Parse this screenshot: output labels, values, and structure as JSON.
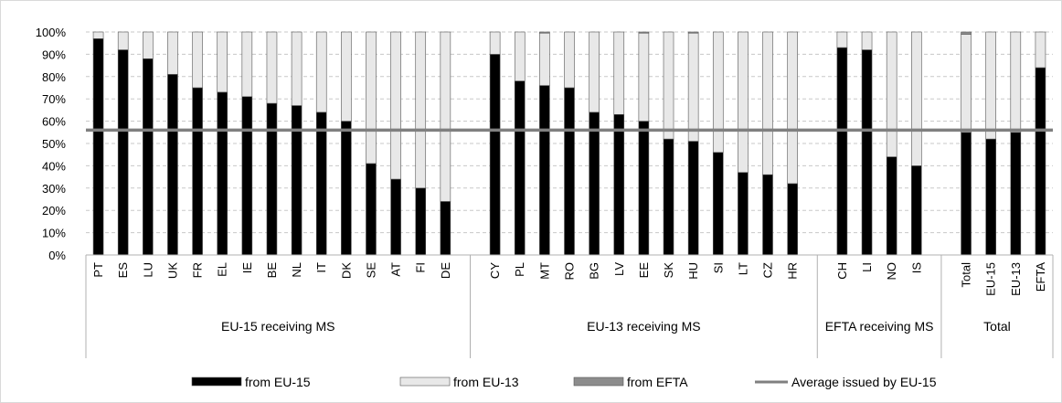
{
  "chart_data": {
    "type": "bar",
    "stacked": true,
    "orientation": "vertical",
    "ylim": [
      0,
      100
    ],
    "y_ticks": [
      "0%",
      "10%",
      "20%",
      "30%",
      "40%",
      "50%",
      "60%",
      "70%",
      "80%",
      "90%",
      "100%"
    ],
    "grid": "horizontal dashed",
    "legend_position": "bottom",
    "groups": [
      {
        "label": "EU-15 receiving MS",
        "categories": [
          "PT",
          "ES",
          "LU",
          "UK",
          "FR",
          "EL",
          "IE",
          "BE",
          "NL",
          "IT",
          "DK",
          "SE",
          "AT",
          "FI",
          "DE"
        ]
      },
      {
        "label": "EU-13 receiving MS",
        "categories": [
          "CY",
          "PL",
          "MT",
          "RO",
          "BG",
          "LV",
          "EE",
          "SK",
          "HU",
          "SI",
          "LT",
          "CZ",
          "HR"
        ]
      },
      {
        "label": "EFTA receiving MS",
        "categories": [
          "CH",
          "LI",
          "NO",
          "IS"
        ]
      },
      {
        "label": "Total",
        "categories": [
          "Total",
          "EU-15",
          "EU-13",
          "EFTA"
        ]
      }
    ],
    "series": [
      {
        "name": "from EU-15",
        "color": "#000000",
        "values": [
          97,
          92,
          88,
          81,
          75,
          73,
          71,
          68,
          67,
          64,
          60,
          41,
          34,
          30,
          24,
          90,
          78,
          76,
          75,
          64,
          63,
          60,
          52,
          51,
          46,
          37,
          36,
          32,
          93,
          92,
          44,
          40,
          55,
          52,
          55,
          84
        ]
      },
      {
        "name": "from EU-13",
        "color": "#e8e8e8",
        "values": [
          3,
          8,
          12,
          19,
          25,
          27,
          29,
          32,
          33,
          36,
          40,
          59,
          66,
          70,
          76,
          10,
          22,
          23.5,
          25,
          36,
          37,
          39.5,
          48,
          48.5,
          54,
          63,
          64,
          68,
          7,
          8,
          56,
          60,
          44,
          48,
          45,
          16
        ]
      },
      {
        "name": "from EFTA",
        "color": "#8c8c8c",
        "values": [
          0,
          0,
          0,
          0,
          0,
          0,
          0,
          0,
          0,
          0,
          0,
          0,
          0,
          0,
          0,
          0,
          0,
          0.5,
          0,
          0,
          0,
          0.5,
          0,
          0.5,
          0,
          0,
          0,
          0,
          0,
          0,
          0,
          0,
          1,
          0,
          0,
          0
        ]
      }
    ],
    "reference_line": {
      "name": "Average issued by EU-15",
      "value": 56,
      "color": "#808080"
    }
  }
}
